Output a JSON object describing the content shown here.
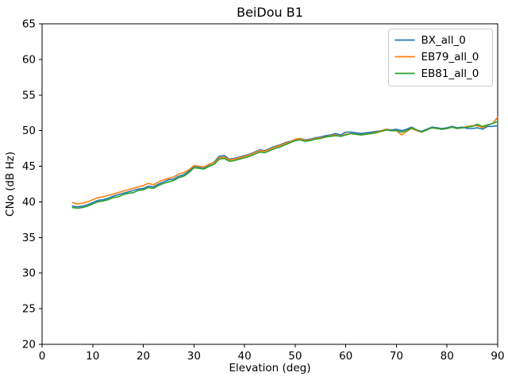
{
  "chart_data": {
    "type": "line",
    "title": "BeiDou B1",
    "xlabel": "Elevation (deg)",
    "ylabel": "CNo (dB Hz)",
    "xlim": [
      0,
      90
    ],
    "ylim": [
      20,
      65
    ],
    "xticks": [
      0,
      10,
      20,
      30,
      40,
      50,
      60,
      70,
      80,
      90
    ],
    "yticks": [
      20,
      25,
      30,
      35,
      40,
      45,
      50,
      55,
      60,
      65
    ],
    "grid": false,
    "legend_position": "upper right",
    "x": [
      6,
      7,
      8,
      9,
      10,
      11,
      12,
      13,
      14,
      15,
      16,
      17,
      18,
      19,
      20,
      21,
      22,
      23,
      24,
      25,
      26,
      27,
      28,
      29,
      30,
      31,
      32,
      33,
      34,
      35,
      36,
      37,
      38,
      39,
      40,
      41,
      42,
      43,
      44,
      45,
      46,
      47,
      48,
      49,
      50,
      51,
      52,
      53,
      54,
      55,
      56,
      57,
      58,
      59,
      60,
      61,
      62,
      63,
      64,
      65,
      66,
      67,
      68,
      69,
      70,
      71,
      72,
      73,
      74,
      75,
      76,
      77,
      78,
      79,
      80,
      81,
      82,
      83,
      84,
      85,
      86,
      87,
      88,
      89,
      90
    ],
    "series": [
      {
        "name": "BX_all_0",
        "color": "#1f77b4",
        "values": [
          39.4,
          39.3,
          39.4,
          39.6,
          39.9,
          40.2,
          40.3,
          40.5,
          40.8,
          41.0,
          41.2,
          41.4,
          41.6,
          41.8,
          41.9,
          42.2,
          42.1,
          42.5,
          42.8,
          43.1,
          43.2,
          43.6,
          43.8,
          44.3,
          45.0,
          44.9,
          44.8,
          45.2,
          45.6,
          46.4,
          46.5,
          46.0,
          46.1,
          46.3,
          46.5,
          46.7,
          47.0,
          47.3,
          47.2,
          47.5,
          47.8,
          48.0,
          48.3,
          48.5,
          48.7,
          48.9,
          48.7,
          48.8,
          49.0,
          49.1,
          49.3,
          49.4,
          49.6,
          49.4,
          49.8,
          49.8,
          49.7,
          49.6,
          49.7,
          49.8,
          49.9,
          50.0,
          50.2,
          50.1,
          50.2,
          50.0,
          50.2,
          50.5,
          50.1,
          49.9,
          50.2,
          50.5,
          50.4,
          50.3,
          50.4,
          50.6,
          50.4,
          50.5,
          50.3,
          50.3,
          50.4,
          50.2,
          50.6,
          50.6,
          50.7
        ]
      },
      {
        "name": "EB79_all_0",
        "color": "#ff7f0e",
        "values": [
          39.9,
          39.7,
          39.8,
          40.0,
          40.3,
          40.6,
          40.7,
          40.9,
          41.1,
          41.3,
          41.5,
          41.7,
          41.9,
          42.1,
          42.3,
          42.6,
          42.4,
          42.8,
          43.1,
          43.3,
          43.5,
          43.9,
          44.1,
          44.5,
          45.1,
          45.0,
          44.9,
          45.3,
          45.5,
          46.2,
          46.3,
          45.9,
          46.0,
          46.2,
          46.4,
          46.6,
          46.9,
          47.2,
          47.1,
          47.4,
          47.7,
          47.9,
          48.2,
          48.4,
          48.8,
          48.9,
          48.6,
          48.7,
          48.9,
          49.0,
          49.1,
          49.3,
          49.4,
          49.2,
          49.5,
          49.6,
          49.5,
          49.4,
          49.5,
          49.6,
          49.8,
          50.0,
          50.2,
          50.0,
          50.0,
          49.4,
          49.9,
          50.3,
          50.0,
          49.8,
          50.1,
          50.4,
          50.3,
          50.2,
          50.3,
          50.5,
          50.3,
          50.4,
          50.6,
          50.7,
          50.7,
          50.4,
          50.8,
          51.0,
          51.9
        ]
      },
      {
        "name": "EB81_all_0",
        "color": "#2ca02c",
        "values": [
          39.2,
          39.1,
          39.2,
          39.4,
          39.7,
          40.0,
          40.1,
          40.3,
          40.6,
          40.7,
          41.0,
          41.2,
          41.3,
          41.6,
          41.7,
          42.0,
          41.9,
          42.3,
          42.6,
          42.8,
          43.0,
          43.4,
          43.6,
          44.1,
          44.8,
          44.7,
          44.6,
          45.0,
          45.3,
          46.0,
          46.1,
          45.7,
          45.8,
          46.0,
          46.2,
          46.4,
          46.7,
          47.0,
          46.9,
          47.2,
          47.5,
          47.7,
          48.0,
          48.3,
          48.6,
          48.7,
          48.5,
          48.6,
          48.8,
          48.9,
          49.1,
          49.2,
          49.3,
          49.2,
          49.4,
          49.6,
          49.5,
          49.4,
          49.5,
          49.6,
          49.7,
          49.9,
          50.1,
          50.0,
          50.0,
          49.8,
          50.0,
          50.4,
          50.1,
          49.8,
          50.1,
          50.4,
          50.3,
          50.2,
          50.3,
          50.5,
          50.3,
          50.4,
          50.5,
          50.6,
          50.9,
          50.6,
          50.8,
          51.0,
          51.3
        ]
      }
    ]
  }
}
